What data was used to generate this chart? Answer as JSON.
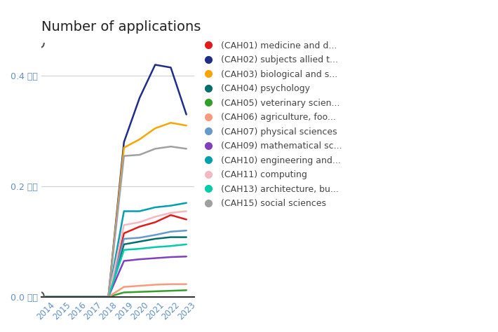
{
  "title": "Number of applications",
  "ylabel": "百万",
  "years": [
    2014,
    2015,
    2016,
    2017,
    2018,
    2019,
    2020,
    2021,
    2022,
    2023
  ],
  "series": [
    {
      "label": "(CAH01) medicine and d...",
      "color": "#e31a1c",
      "values": [
        0,
        0,
        0,
        0,
        0,
        0.115,
        0.127,
        0.135,
        0.148,
        0.14
      ]
    },
    {
      "label": "(CAH02) subjects allied t...",
      "color": "#1f2d8a",
      "values": [
        0,
        0,
        0,
        0,
        0,
        0.28,
        0.36,
        0.42,
        0.415,
        0.33
      ]
    },
    {
      "label": "(CAH03) biological and s...",
      "color": "#f7a600",
      "values": [
        0,
        0,
        0,
        0,
        0,
        0.27,
        0.285,
        0.305,
        0.315,
        0.31
      ]
    },
    {
      "label": "(CAH04) psychology",
      "color": "#006f6a",
      "values": [
        0,
        0,
        0,
        0,
        0,
        0.095,
        0.1,
        0.105,
        0.108,
        0.108
      ]
    },
    {
      "label": "(CAH05) veterinary scien...",
      "color": "#33a02c",
      "values": [
        0,
        0,
        0,
        0,
        0,
        0.008,
        0.009,
        0.01,
        0.011,
        0.012
      ]
    },
    {
      "label": "(CAH06) agriculture, foo...",
      "color": "#fb9a7a",
      "values": [
        0,
        0,
        0,
        0,
        0,
        0.018,
        0.02,
        0.022,
        0.023,
        0.023
      ]
    },
    {
      "label": "(CAH07) physical sciences",
      "color": "#6699cc",
      "values": [
        0,
        0,
        0,
        0,
        0,
        0.105,
        0.107,
        0.112,
        0.118,
        0.12
      ]
    },
    {
      "label": "(CAH09) mathematical sc...",
      "color": "#7f3fbf",
      "values": [
        0,
        0,
        0,
        0,
        0,
        0.065,
        0.068,
        0.07,
        0.072,
        0.073
      ]
    },
    {
      "label": "(CAH10) engineering and...",
      "color": "#00a0b0",
      "values": [
        0,
        0,
        0,
        0,
        0,
        0.155,
        0.155,
        0.162,
        0.165,
        0.17
      ]
    },
    {
      "label": "(CAH11) computing",
      "color": "#f4b8c0",
      "values": [
        0,
        0,
        0,
        0,
        0,
        0.13,
        0.135,
        0.145,
        0.152,
        0.155
      ]
    },
    {
      "label": "(CAH13) architecture, bu...",
      "color": "#00ccaa",
      "values": [
        0,
        0,
        0,
        0,
        0,
        0.085,
        0.087,
        0.09,
        0.092,
        0.095
      ]
    },
    {
      "label": "(CAH15) social sciences",
      "color": "#a0a0a0",
      "values": [
        0,
        0,
        0,
        0,
        0,
        0.255,
        0.257,
        0.268,
        0.272,
        0.268
      ]
    }
  ],
  "yticks": [
    0.0,
    0.2,
    0.4
  ],
  "ytick_labels": [
    "0.0 百万",
    "0.2 百万",
    "0.4 百万"
  ],
  "ylim": [
    0,
    0.46
  ],
  "xlim": [
    2013.7,
    2023.5
  ],
  "background_color": "#ffffff",
  "grid_color": "#d0d0d0",
  "title_fontsize": 14,
  "legend_fontsize": 9,
  "tick_color": "#6090c0"
}
